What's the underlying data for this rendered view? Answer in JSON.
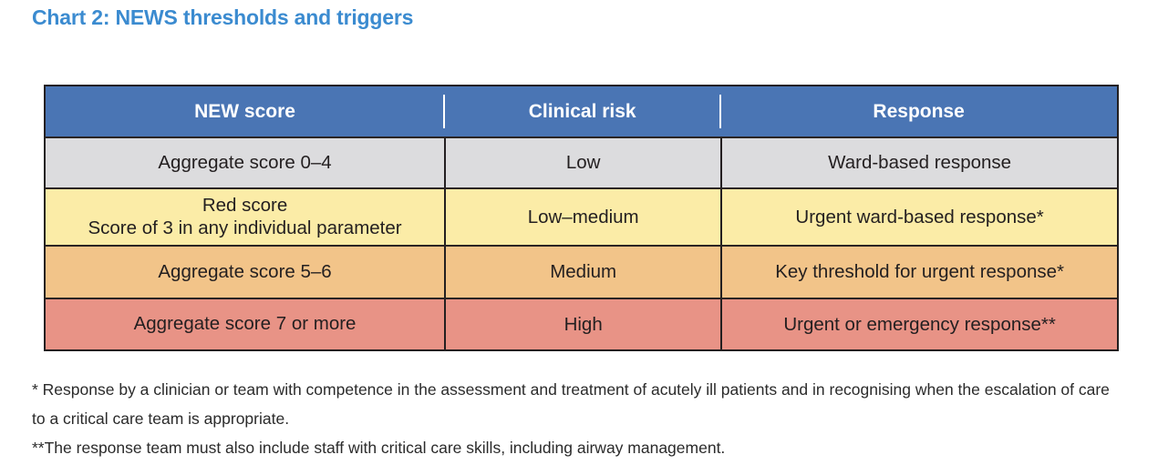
{
  "title": "Chart 2: NEWS thresholds and triggers",
  "table": {
    "headers": [
      "NEW score",
      "Clinical risk",
      "Response"
    ],
    "rows": [
      {
        "score": "Aggregate score 0–4",
        "risk": "Low",
        "response": "Ward-based response",
        "bg": "#dcdcde"
      },
      {
        "score": "Red score",
        "score_line2": "Score of 3 in any individual parameter",
        "risk": "Low–medium",
        "response": "Urgent ward-based response*",
        "bg": "#fbeca7"
      },
      {
        "score": "Aggregate score 5–6",
        "risk": "Medium",
        "response": "Key threshold for urgent response*",
        "bg": "#f2c489"
      },
      {
        "score": "Aggregate score 7 or more",
        "risk": "High",
        "response": "Urgent or emergency response**",
        "bg": "#e89386"
      }
    ]
  },
  "footnotes": [
    "* Response by a clinician or team with competence in the assessment and treatment of acutely ill patients and in recognising when the escalation of care to a critical care team is appropriate.",
    "**The response team must also include staff with critical care skills, including airway management."
  ],
  "colors": {
    "title_blue": "#3b8bd0",
    "header_blue": "#4a75b4",
    "row_gray": "#dcdcde",
    "row_yellow": "#fbeca7",
    "row_orange": "#f2c489",
    "row_salmon": "#e89386",
    "border_dark": "#231f20",
    "header_text": "#ffffff",
    "body_text": "#231f20"
  },
  "chart_data": {
    "type": "table",
    "title": "Chart 2: NEWS thresholds and triggers",
    "columns": [
      "NEW score",
      "Clinical risk",
      "Response"
    ],
    "rows": [
      [
        "Aggregate score 0–4",
        "Low",
        "Ward-based response"
      ],
      [
        "Red score — Score of 3 in any individual parameter",
        "Low–medium",
        "Urgent ward-based response*"
      ],
      [
        "Aggregate score 5–6",
        "Medium",
        "Key threshold for urgent response*"
      ],
      [
        "Aggregate score 7 or more",
        "High",
        "Urgent or emergency response**"
      ]
    ]
  }
}
